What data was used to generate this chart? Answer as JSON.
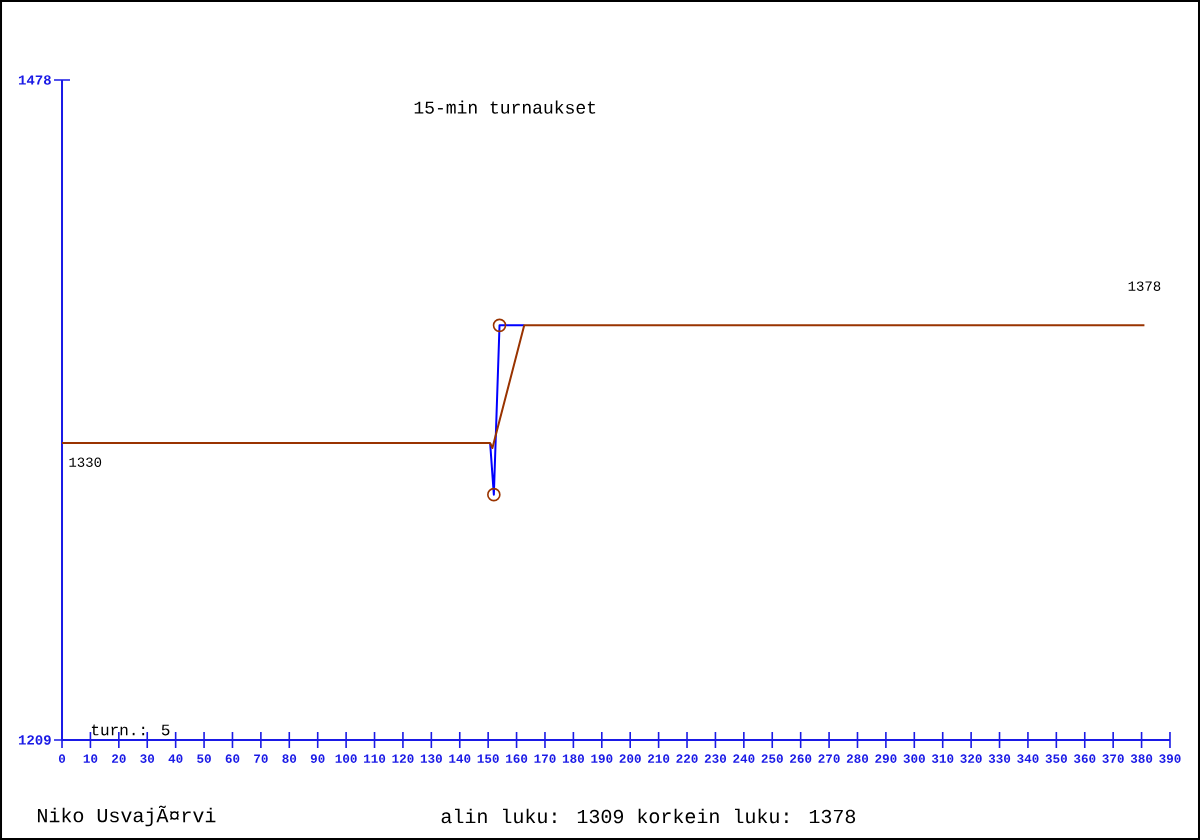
{
  "chart_data": {
    "type": "line",
    "title": "15-min turnaukset",
    "x": [
      150.7,
      152,
      154,
      162.7
    ],
    "series": [
      {
        "color": "#0000ff",
        "values": [
          1330,
          1309,
          1378,
          1378
        ]
      },
      {
        "color": "#993300",
        "x": [
          0,
          150.7,
          151.5,
          162.7,
          381
        ],
        "values": [
          1330,
          1330,
          1328,
          1378,
          1378
        ]
      },
      {
        "type": "scatter",
        "color": "#993300",
        "marker": "circle",
        "x": [
          152,
          154
        ],
        "values": [
          1309,
          1378
        ]
      }
    ],
    "xlim": [
      0,
      390
    ],
    "xticks": [
      0,
      10,
      20,
      30,
      40,
      50,
      60,
      70,
      80,
      90,
      100,
      110,
      120,
      130,
      140,
      150,
      160,
      170,
      180,
      190,
      200,
      210,
      220,
      230,
      240,
      250,
      260,
      270,
      280,
      290,
      300,
      310,
      320,
      330,
      340,
      350,
      360,
      370,
      380,
      390
    ],
    "ylim": [
      1209,
      1478
    ],
    "yticks": [
      1209,
      1478
    ],
    "annotations": [
      {
        "text": "1330",
        "x": 0,
        "y": 1330
      },
      {
        "text": "1378",
        "x": 381,
        "y": 1378
      },
      "turn.: 5",
      "Niko UsvajÃ¤rvi",
      "alin luku: 1309  korkein luku: 1378"
    ]
  }
}
